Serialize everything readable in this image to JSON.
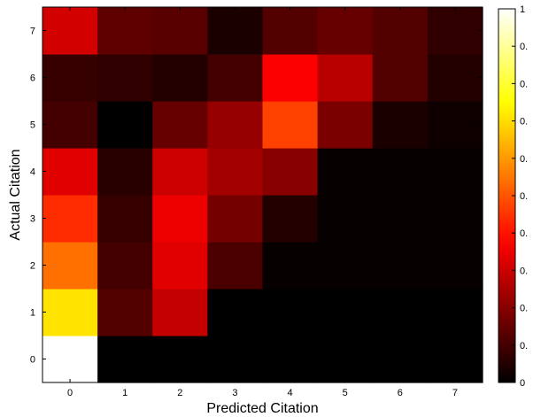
{
  "chart_data": {
    "type": "heatmap",
    "title": "",
    "xlabel": "Predicted Citation",
    "ylabel": "Actual Citation",
    "x_categories": [
      "0",
      "1",
      "2",
      "3",
      "4",
      "5",
      "6",
      "7"
    ],
    "y_categories": [
      "0",
      "1",
      "2",
      "3",
      "4",
      "5",
      "6",
      "7"
    ],
    "colormap": "hot",
    "colorbar": {
      "range": [
        0,
        1
      ],
      "tick_labels": [
        "0",
        "0.",
        "0.",
        "0.",
        "0.",
        "0.",
        "0.",
        "0.",
        "0.",
        "0.",
        "1"
      ]
    },
    "grid": false,
    "legend": "none",
    "values": [
      [
        1.0,
        0.0,
        0.0,
        0.0,
        0.0,
        0.0,
        0.0,
        0.0
      ],
      [
        0.71,
        0.12,
        0.29,
        0.0,
        0.0,
        0.0,
        0.0,
        0.0
      ],
      [
        0.54,
        0.1,
        0.33,
        0.11,
        0.01,
        0.01,
        0.01,
        0.01
      ],
      [
        0.44,
        0.08,
        0.35,
        0.17,
        0.05,
        0.01,
        0.01,
        0.01
      ],
      [
        0.33,
        0.06,
        0.3,
        0.24,
        0.2,
        0.01,
        0.01,
        0.01
      ],
      [
        0.1,
        0.0,
        0.15,
        0.22,
        0.47,
        0.18,
        0.04,
        0.02
      ],
      [
        0.08,
        0.07,
        0.05,
        0.1,
        0.37,
        0.27,
        0.12,
        0.05
      ],
      [
        0.31,
        0.14,
        0.13,
        0.04,
        0.12,
        0.15,
        0.12,
        0.07
      ]
    ]
  }
}
